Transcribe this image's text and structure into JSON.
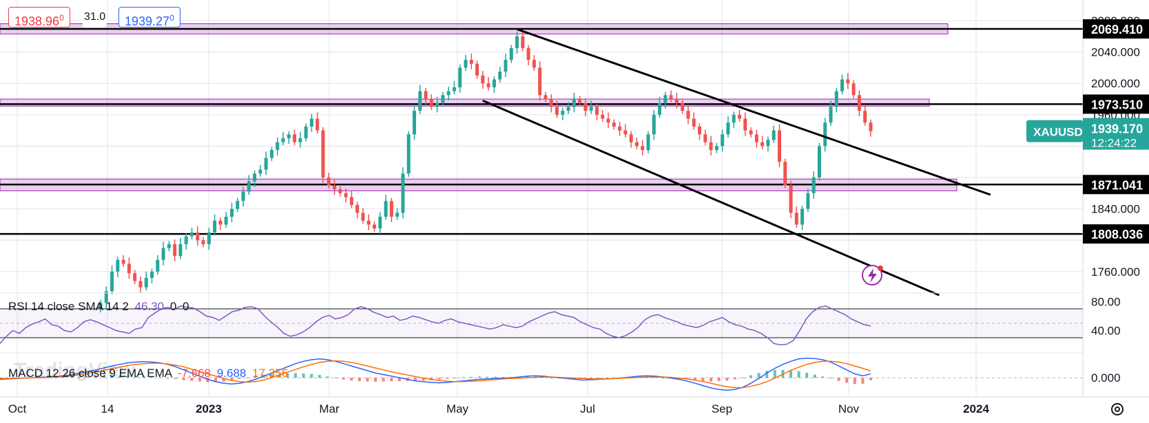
{
  "header": {
    "bid": "1938.96",
    "bid_sup": "0",
    "spread": "31.0",
    "ask": "1939.27",
    "ask_sup": "0"
  },
  "watermark": "TradingView",
  "symbol": {
    "name": "XAUUSD",
    "price": "1939.170",
    "countdown": "12:24:22",
    "color": "#26a69a"
  },
  "price_axis": {
    "ticks": [
      "2080.000",
      "2040.000",
      "2000.000",
      "1960.000",
      "1840.000",
      "1760.000"
    ],
    "level_labels": [
      "2069.410",
      "1973.510",
      "1871.041",
      "1808.036"
    ]
  },
  "time_axis": {
    "labels": [
      "Oct",
      "14",
      "2023",
      "Mar",
      "May",
      "Jul",
      "Sep",
      "Nov",
      "2024"
    ]
  },
  "rsi": {
    "legend": {
      "name": "RSI 14 close SMA 14 2",
      "value": "46.30",
      "z1": "0",
      "z2": "0"
    },
    "ticks": [
      "80.00",
      "40.00"
    ],
    "color": "#7e57c2",
    "values": [
      22,
      32,
      40,
      36,
      44,
      49,
      52,
      56,
      48,
      46,
      40,
      38,
      44,
      52,
      55,
      52,
      48,
      44,
      40,
      38,
      36,
      42,
      44,
      58,
      64,
      70,
      72,
      69,
      74,
      72,
      71,
      66,
      60,
      58,
      54,
      60,
      66,
      68,
      72,
      73,
      70,
      60,
      52,
      45,
      36,
      32,
      34,
      38,
      44,
      52,
      58,
      61,
      56,
      58,
      62,
      70,
      73,
      70,
      65,
      62,
      58,
      60,
      54,
      56,
      60,
      58,
      55,
      52,
      50,
      54,
      56,
      52,
      50,
      48,
      46,
      44,
      42,
      44,
      48,
      46,
      44,
      46,
      52,
      56,
      60,
      64,
      66,
      62,
      60,
      58,
      52,
      48,
      44,
      42,
      36,
      32,
      30,
      33,
      38,
      45,
      55,
      60,
      62,
      58,
      55,
      52,
      48,
      46,
      44,
      47,
      52,
      55,
      58,
      52,
      48,
      46,
      42,
      40,
      36,
      30,
      22,
      20,
      21,
      26,
      40,
      56,
      66,
      72,
      74,
      70,
      66,
      62,
      56,
      52,
      48,
      46.3
    ]
  },
  "macd": {
    "legend": {
      "name": "MACD 12 26 close 9 EMA EMA",
      "hist": "-7.668",
      "macd": "9.688",
      "signal": "17.356"
    },
    "ticks": [
      "0.000"
    ],
    "macd_color": "#2962ff",
    "signal_color": "#ff6d00",
    "hist_pos_color": "#26a69a",
    "hist_neg_color": "#ef5350",
    "macd_values": [
      -4,
      -3,
      -2,
      -1,
      0,
      1,
      2,
      3,
      5,
      8,
      12,
      16,
      20,
      25,
      30,
      34,
      38,
      40,
      41,
      40,
      38,
      34,
      28,
      20,
      12,
      4,
      -4,
      -10,
      -14,
      -16,
      -14,
      -10,
      -4,
      4,
      12,
      20,
      28,
      36,
      42,
      46,
      48,
      46,
      42,
      36,
      30,
      24,
      18,
      12,
      8,
      4,
      0,
      -4,
      -8,
      -10,
      -12,
      -13,
      -12,
      -10,
      -8,
      -6,
      -4,
      -3,
      -2,
      -1,
      0,
      2,
      4,
      5,
      4,
      2,
      0,
      -2,
      -4,
      -6,
      -5,
      -4,
      -3,
      -2,
      0,
      2,
      4,
      5,
      4,
      2,
      -1,
      -4,
      -8,
      -14,
      -20,
      -26,
      -30,
      -32,
      -30,
      -24,
      -14,
      -2,
      12,
      24,
      34,
      42,
      48,
      50,
      49,
      46,
      40,
      30,
      20,
      10,
      5,
      9.688
    ],
    "signal_values": [
      -2,
      -2,
      -1,
      -1,
      0,
      0,
      1,
      2,
      3,
      5,
      8,
      11,
      15,
      19,
      23,
      27,
      31,
      34,
      36,
      37,
      37,
      35,
      32,
      28,
      22,
      16,
      10,
      4,
      -2,
      -7,
      -10,
      -11,
      -10,
      -6,
      0,
      7,
      14,
      21,
      28,
      34,
      39,
      42,
      43,
      42,
      39,
      35,
      30,
      25,
      20,
      15,
      11,
      7,
      3,
      -1,
      -4,
      -7,
      -9,
      -10,
      -10,
      -9,
      -8,
      -6,
      -5,
      -3,
      -2,
      -1,
      0,
      1,
      2,
      2,
      1,
      0,
      -1,
      -2,
      -3,
      -3,
      -3,
      -2,
      -1,
      0,
      1,
      2,
      2,
      2,
      1,
      -1,
      -3,
      -6,
      -10,
      -14,
      -19,
      -23,
      -25,
      -25,
      -22,
      -17,
      -10,
      -1,
      9,
      19,
      27,
      34,
      39,
      42,
      42,
      40,
      36,
      30,
      24,
      17.356
    ]
  },
  "chart_data": {
    "type": "line",
    "title": "",
    "symbol": "XAUUSD",
    "xlabel": "",
    "ylabel": "",
    "ylim": [
      1738,
      2094
    ],
    "grid": true,
    "x_labels": [
      "Oct",
      "14",
      "2023",
      "Mar",
      "May",
      "Jul",
      "Sep",
      "Nov",
      "2024"
    ],
    "series": [
      {
        "values": [
          1720,
          1735,
          1760,
          1775,
          1770,
          1758,
          1748,
          1740,
          1752,
          1760,
          1775,
          1790,
          1795,
          1780,
          1795,
          1805,
          1810,
          1800,
          1795,
          1810,
          1825,
          1820,
          1830,
          1840,
          1850,
          1862,
          1875,
          1885,
          1890,
          1905,
          1915,
          1925,
          1930,
          1935,
          1925,
          1930,
          1945,
          1955,
          1940,
          1880,
          1870,
          1865,
          1860,
          1855,
          1845,
          1835,
          1825,
          1820,
          1815,
          1830,
          1850,
          1830,
          1835,
          1885,
          1935,
          1965,
          1990,
          1980,
          1970,
          1975,
          1985,
          1990,
          1995,
          2020,
          2030,
          2025,
          2010,
          2000,
          1995,
          2005,
          2015,
          2030,
          2045,
          2060,
          2045,
          2030,
          2020,
          1985,
          1980,
          1970,
          1960,
          1965,
          1970,
          1980,
          1975,
          1965,
          1970,
          1960,
          1955,
          1950,
          1945,
          1940,
          1935,
          1925,
          1920,
          1915,
          1935,
          1960,
          1975,
          1985,
          1980,
          1975,
          1965,
          1955,
          1945,
          1935,
          1925,
          1915,
          1920,
          1935,
          1950,
          1960,
          1955,
          1940,
          1935,
          1925,
          1920,
          1928,
          1940,
          1900,
          1870,
          1835,
          1820,
          1840,
          1860,
          1880,
          1920,
          1950,
          1970,
          1990,
          2005,
          2000,
          1985,
          1965,
          1950,
          1939
        ]
      }
    ],
    "horizontal_levels": [
      2069.41,
      1973.51,
      1871.041,
      1808.036
    ],
    "zones": [
      {
        "low": 2063,
        "high": 2076
      },
      {
        "low": 1971,
        "high": 1980
      },
      {
        "low": 1863,
        "high": 1878
      }
    ],
    "trend_channel": [
      {
        "x0": 73,
        "y0": 2069,
        "x1": 156,
        "y1": 1858
      },
      {
        "x0": 67,
        "y0": 1978,
        "x1": 147,
        "y1": 1730
      }
    ]
  }
}
